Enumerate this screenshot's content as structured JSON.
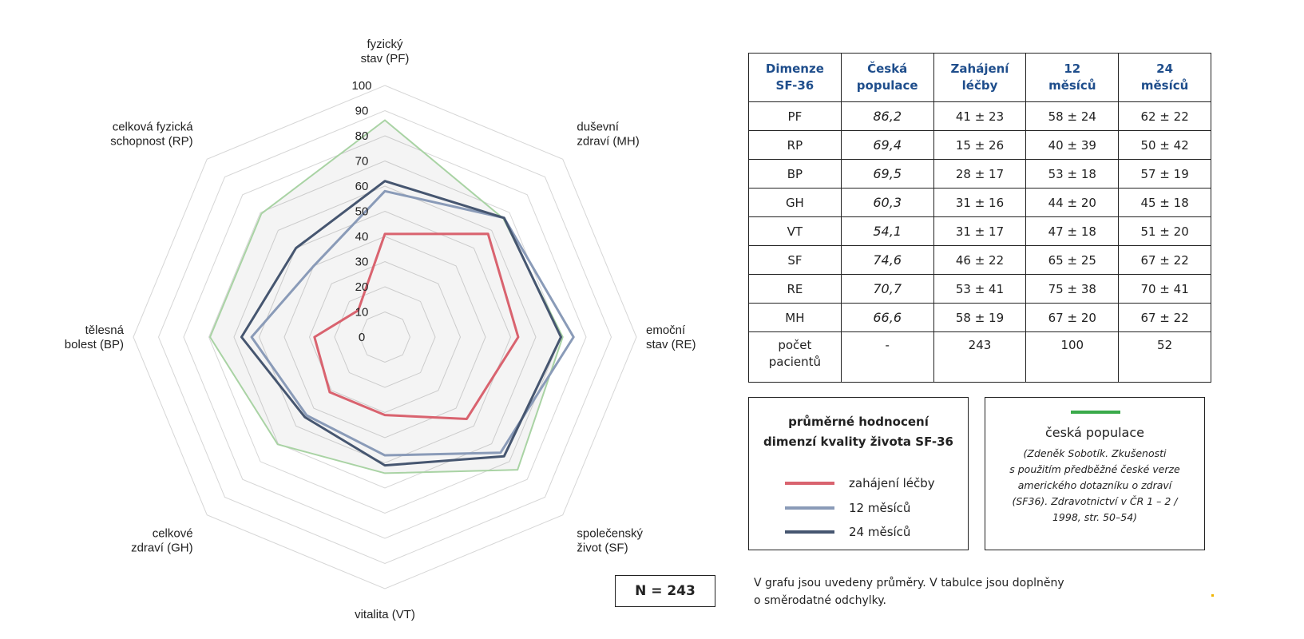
{
  "chart_data": {
    "type": "radar",
    "axes": [
      {
        "code": "PF",
        "label_lines": [
          "fyzický",
          "stav (PF)"
        ]
      },
      {
        "code": "MH",
        "label_lines": [
          "duševní",
          "zdraví (MH)"
        ]
      },
      {
        "code": "RE",
        "label_lines": [
          "emoční",
          "stav (RE)"
        ]
      },
      {
        "code": "SF",
        "label_lines": [
          "společenský",
          "život (SF)"
        ]
      },
      {
        "code": "VT",
        "label_lines": [
          "vitalita (VT)"
        ]
      },
      {
        "code": "GH",
        "label_lines": [
          "celkové",
          "zdraví (GH)"
        ]
      },
      {
        "code": "BP",
        "label_lines": [
          "tělesná",
          "bolest (BP)"
        ]
      },
      {
        "code": "RP",
        "label_lines": [
          "celková fyzická",
          "schopnost (RP)"
        ]
      }
    ],
    "ticks": [
      0,
      10,
      20,
      30,
      40,
      50,
      60,
      70,
      80,
      90,
      100
    ],
    "rlim": [
      0,
      100
    ],
    "series": [
      {
        "name": "česká populace",
        "color": "#a9d3a4",
        "fill": true,
        "values": [
          86.2,
          66.6,
          70.7,
          74.6,
          54.1,
          60.3,
          69.5,
          69.4
        ]
      },
      {
        "name": "zahájení léčby",
        "color": "#d9636f",
        "values": [
          41,
          58,
          53,
          46,
          31,
          31,
          28,
          15
        ]
      },
      {
        "name": "12 měsíců",
        "color": "#8a9bb8",
        "values": [
          58,
          67,
          75,
          65,
          47,
          44,
          53,
          40
        ]
      },
      {
        "name": "24 měsíců",
        "color": "#465670",
        "values": [
          62,
          67,
          70,
          67,
          51,
          45,
          57,
          50
        ]
      }
    ]
  },
  "table": {
    "headers": [
      [
        "Dimenze",
        "SF-36"
      ],
      [
        "Česká",
        "populace"
      ],
      [
        "Zahájení",
        "léčby"
      ],
      [
        "12",
        "měsíců"
      ],
      [
        "24",
        "měsíců"
      ]
    ],
    "rows": [
      {
        "dim": "PF",
        "cz": "86,2",
        "start": "41 ± 23",
        "m12": "58 ± 24",
        "m24": "62 ± 22"
      },
      {
        "dim": "RP",
        "cz": "69,4",
        "start": "15 ± 26",
        "m12": "40 ± 39",
        "m24": "50 ± 42"
      },
      {
        "dim": "BP",
        "cz": "69,5",
        "start": "28 ± 17",
        "m12": "53 ± 18",
        "m24": "57 ± 19"
      },
      {
        "dim": "GH",
        "cz": "60,3",
        "start": "31 ± 16",
        "m12": "44 ± 20",
        "m24": "45 ± 18"
      },
      {
        "dim": "VT",
        "cz": "54,1",
        "start": "31 ± 17",
        "m12": "47 ± 18",
        "m24": "51 ± 20"
      },
      {
        "dim": "SF",
        "cz": "74,6",
        "start": "46 ± 22",
        "m12": "65 ± 25",
        "m24": "67 ± 22"
      },
      {
        "dim": "RE",
        "cz": "70,7",
        "start": "53 ± 41",
        "m12": "75 ± 38",
        "m24": "70 ± 41"
      },
      {
        "dim": "MH",
        "cz": "66,6",
        "start": "58 ± 19",
        "m12": "67 ± 20",
        "m24": "67 ± 22"
      }
    ],
    "count_row": {
      "label": [
        "počet",
        "pacientů"
      ],
      "cz": "-",
      "start": "243",
      "m12": "100",
      "m24": "52"
    }
  },
  "legend": {
    "title_lines": [
      "průměrné hodnocení",
      "dimenzí kvality života SF-36"
    ],
    "items": [
      {
        "label": "zahájení léčby",
        "color": "#d9636f"
      },
      {
        "label": "12 měsíců",
        "color": "#8a9bb8"
      },
      {
        "label": "24 měsíců",
        "color": "#465670"
      }
    ]
  },
  "source": {
    "line_color": "#3aaa4a",
    "title": "česká populace",
    "text_lines": [
      "(Zdeněk Sobotík. Zkušenosti",
      "s použitím předběžné české verze",
      "amerického dotazníku o zdraví",
      "(SF36). Zdravotnictví v ČR 1 – 2 /",
      "1998, str. 50–54)"
    ]
  },
  "n_label": "N = 243",
  "note_lines": [
    "V grafu jsou uvedeny průměry. V tabulce jsou doplněny",
    "o směrodatné odchylky."
  ]
}
